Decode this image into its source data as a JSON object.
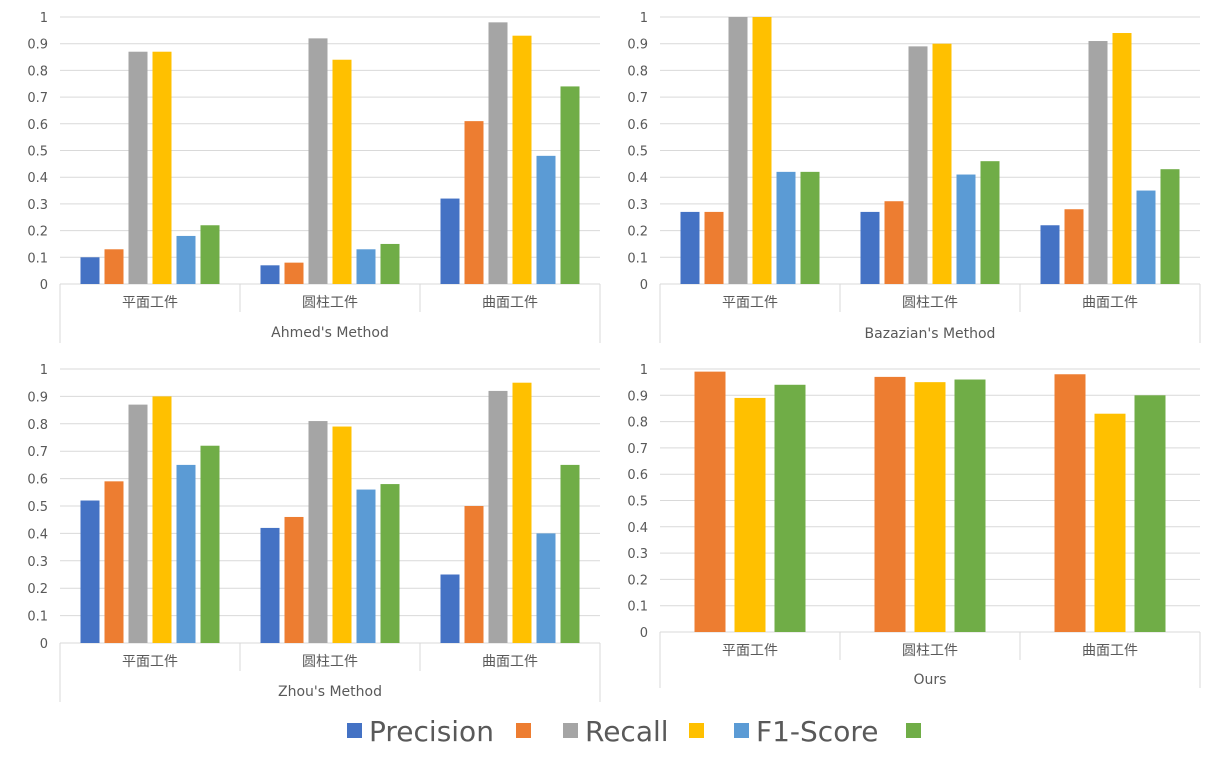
{
  "colors": {
    "gridline": "#d9d9d9",
    "axis": "#d9d9d9",
    "text": "#595959"
  },
  "legend": {
    "items": [
      {
        "label": "Precision",
        "color": "#4472c4"
      },
      {
        "label": "",
        "color": "#ed7d31"
      },
      {
        "label": "Recall",
        "color": "#a5a5a5"
      },
      {
        "label": "",
        "color": "#ffc000"
      },
      {
        "label": "F1-Score",
        "color": "#5b9bd5"
      },
      {
        "label": "",
        "color": "#70ad47"
      }
    ]
  },
  "chart_data": [
    {
      "type": "bar",
      "title": "",
      "group_label": "Ahmed's Method",
      "categories": [
        "平面工件",
        "圆柱工件",
        "曲面工件"
      ],
      "ylim": [
        0,
        1
      ],
      "yticks": [
        "0",
        "0.1",
        "0.2",
        "0.3",
        "0.4",
        "0.5",
        "0.6",
        "0.7",
        "0.8",
        "0.9",
        "1"
      ],
      "grid": true,
      "series": [
        {
          "color": "#4472c4",
          "values": [
            0.1,
            0.07,
            0.32
          ]
        },
        {
          "color": "#ed7d31",
          "values": [
            0.13,
            0.08,
            0.61
          ]
        },
        {
          "color": "#a5a5a5",
          "values": [
            0.87,
            0.92,
            0.98
          ]
        },
        {
          "color": "#ffc000",
          "values": [
            0.87,
            0.84,
            0.93
          ]
        },
        {
          "color": "#5b9bd5",
          "values": [
            0.18,
            0.13,
            0.48
          ]
        },
        {
          "color": "#70ad47",
          "values": [
            0.22,
            0.15,
            0.74
          ]
        }
      ]
    },
    {
      "type": "bar",
      "title": "",
      "group_label": "Bazazian's Method",
      "categories": [
        "平面工件",
        "圆柱工件",
        "曲面工件"
      ],
      "ylim": [
        0,
        1
      ],
      "yticks": [
        "0",
        "0.1",
        "0.2",
        "0.3",
        "0.4",
        "0.5",
        "0.6",
        "0.7",
        "0.8",
        "0.9",
        "1"
      ],
      "grid": true,
      "series": [
        {
          "color": "#4472c4",
          "values": [
            0.27,
            0.27,
            0.22
          ]
        },
        {
          "color": "#ed7d31",
          "values": [
            0.27,
            0.31,
            0.28
          ]
        },
        {
          "color": "#a5a5a5",
          "values": [
            1.0,
            0.89,
            0.91
          ]
        },
        {
          "color": "#ffc000",
          "values": [
            1.0,
            0.9,
            0.94
          ]
        },
        {
          "color": "#5b9bd5",
          "values": [
            0.42,
            0.41,
            0.35
          ]
        },
        {
          "color": "#70ad47",
          "values": [
            0.42,
            0.46,
            0.43
          ]
        }
      ]
    },
    {
      "type": "bar",
      "title": "",
      "group_label": "Zhou's Method",
      "categories": [
        "平面工件",
        "圆柱工件",
        "曲面工件"
      ],
      "ylim": [
        0,
        1
      ],
      "yticks": [
        "0",
        "0.1",
        "0.2",
        "0.3",
        "0.4",
        "0.5",
        "0.6",
        "0.7",
        "0.8",
        "0.9",
        "1"
      ],
      "grid": true,
      "series": [
        {
          "color": "#4472c4",
          "values": [
            0.52,
            0.42,
            0.25
          ]
        },
        {
          "color": "#ed7d31",
          "values": [
            0.59,
            0.46,
            0.5
          ]
        },
        {
          "color": "#a5a5a5",
          "values": [
            0.87,
            0.81,
            0.92
          ]
        },
        {
          "color": "#ffc000",
          "values": [
            0.9,
            0.79,
            0.95
          ]
        },
        {
          "color": "#5b9bd5",
          "values": [
            0.65,
            0.56,
            0.4
          ]
        },
        {
          "color": "#70ad47",
          "values": [
            0.72,
            0.58,
            0.65
          ]
        }
      ]
    },
    {
      "type": "bar",
      "title": "",
      "group_label": "Ours",
      "categories": [
        "平面工件",
        "圆柱工件",
        "曲面工件"
      ],
      "ylim": [
        0,
        1
      ],
      "yticks": [
        "0",
        "0.1",
        "0.2",
        "0.3",
        "0.4",
        "0.5",
        "0.6",
        "0.7",
        "0.8",
        "0.9",
        "1"
      ],
      "grid": true,
      "series": [
        {
          "color": "#ed7d31",
          "values": [
            0.99,
            0.97,
            0.98
          ]
        },
        {
          "color": "#ffc000",
          "values": [
            0.89,
            0.95,
            0.83
          ]
        },
        {
          "color": "#70ad47",
          "values": [
            0.94,
            0.96,
            0.9
          ]
        }
      ]
    }
  ]
}
